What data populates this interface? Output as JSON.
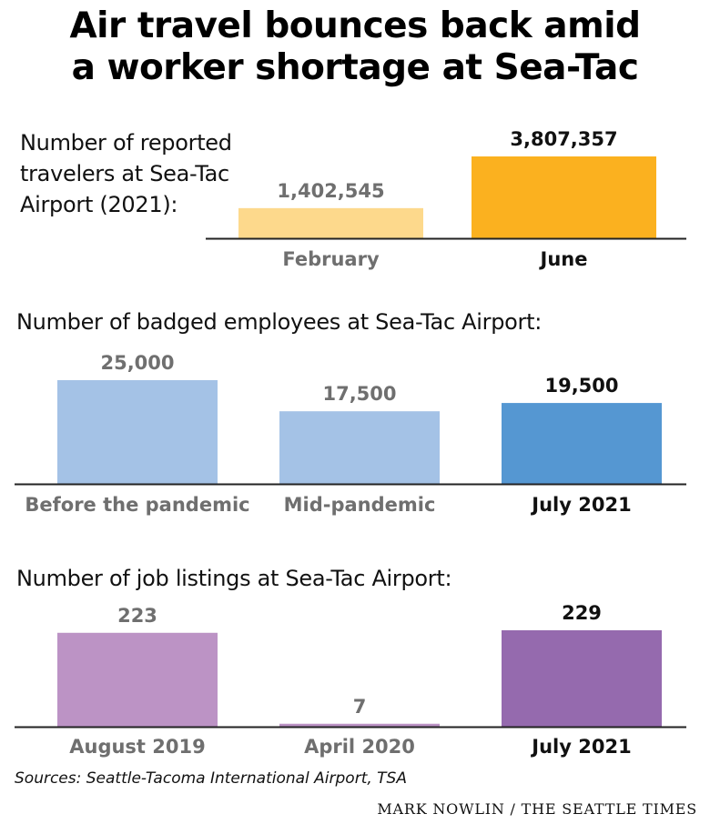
{
  "title": {
    "line1": "Air travel bounces back amid",
    "line2": "a worker shortage at Sea-Tac"
  },
  "chart_data": [
    {
      "type": "bar",
      "title_lines": [
        "Number of reported",
        "travelers at Sea-Tac",
        "Airport (2021):"
      ],
      "categories": [
        "February",
        "June"
      ],
      "values": [
        1402545,
        3807357
      ],
      "value_labels": [
        "1,402,545",
        "3,807,357"
      ],
      "colors": [
        "#fdd98c",
        "#fbb11f"
      ],
      "highlight": [
        false,
        true
      ],
      "ylim": [
        0,
        3807357
      ]
    },
    {
      "type": "bar",
      "title": "Number of badged employees at Sea-Tac Airport:",
      "categories": [
        "Before the pandemic",
        "Mid-pandemic",
        "July 2021"
      ],
      "values": [
        25000,
        17500,
        19500
      ],
      "value_labels": [
        "25,000",
        "17,500",
        "19,500"
      ],
      "colors": [
        "#a4c2e6",
        "#a4c2e6",
        "#5597d2"
      ],
      "highlight": [
        false,
        false,
        true
      ],
      "ylim": [
        0,
        25000
      ]
    },
    {
      "type": "bar",
      "title": "Number of job listings at Sea-Tac Airport:",
      "categories": [
        "August 2019",
        "April 2020",
        "July 2021"
      ],
      "values": [
        223,
        7,
        229
      ],
      "value_labels": [
        "223",
        "7",
        "229"
      ],
      "colors": [
        "#bc93c5",
        "#bc93c5",
        "#956aae"
      ],
      "highlight": [
        false,
        false,
        true
      ],
      "ylim": [
        0,
        229
      ]
    }
  ],
  "colors": {
    "muted_text": "#6f6f6f",
    "highlight_text": "#111111",
    "axis": "#222222"
  },
  "source": "Sources: Seattle-Tacoma International Airport, TSA",
  "credit": "MARK NOWLIN / THE SEATTLE TIMES"
}
